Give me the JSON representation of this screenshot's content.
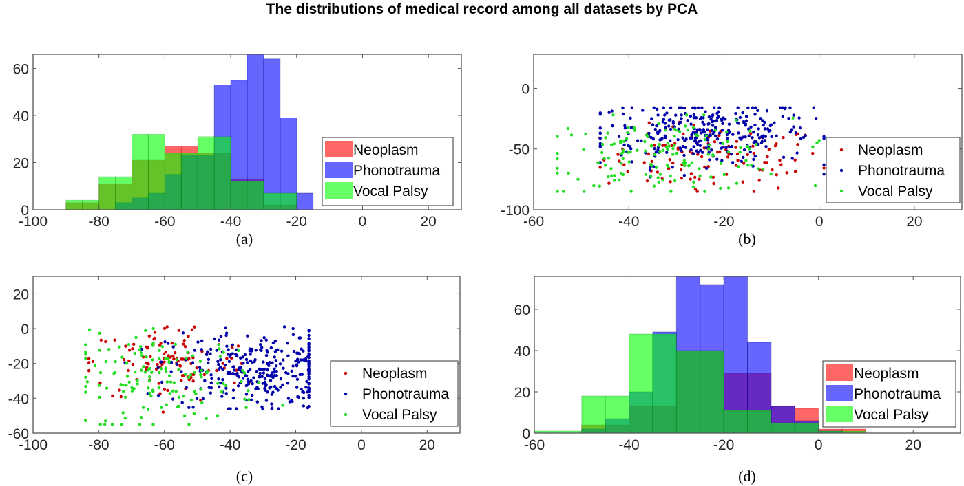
{
  "title": "The distributions of medical record among all datasets by PCA",
  "legend_labels": [
    "Neoplasm",
    "Phonotrauma",
    "Vocal Palsy"
  ],
  "colors": {
    "Neoplasm": "#ff0000",
    "Phonotrauma": "#0000ff",
    "Vocal Palsy": "#00ff00",
    "scatter_Neoplasm": "#cc0000",
    "scatter_Phonotrauma": "#0000aa",
    "scatter_Vocal Palsy": "#22dd22"
  },
  "chart_data": [
    {
      "panel": "a",
      "caption": "(a)",
      "type": "bar",
      "subtype": "overlaid-histogram",
      "bin_width": 5,
      "xlim": [
        -100,
        30
      ],
      "ylim": [
        0,
        66
      ],
      "xticks": [
        -100,
        -80,
        -60,
        -40,
        -20,
        0,
        20
      ],
      "yticks": [
        0,
        20,
        40,
        60
      ],
      "legend": "right",
      "series": [
        {
          "name": "Neoplasm",
          "bin_starts": [
            -90,
            -85,
            -80,
            -75,
            -70,
            -65,
            -60,
            -55,
            -50,
            -45,
            -40,
            -35,
            -30,
            -25
          ],
          "values": [
            3,
            3,
            11,
            11,
            21,
            21,
            27,
            27,
            24,
            24,
            13,
            13,
            2,
            2
          ]
        },
        {
          "name": "Phonotrauma",
          "bin_starts": [
            -75,
            -70,
            -65,
            -60,
            -55,
            -50,
            -45,
            -40,
            -35,
            -30,
            -25,
            -20
          ],
          "values": [
            3,
            5,
            7,
            15,
            23,
            23,
            53,
            55,
            66,
            64,
            39,
            7
          ]
        },
        {
          "name": "Vocal Palsy",
          "bin_starts": [
            -90,
            -85,
            -80,
            -75,
            -70,
            -65,
            -60,
            -55,
            -50,
            -45,
            -40,
            -35,
            -30,
            -25
          ],
          "values": [
            4,
            4,
            14,
            14,
            32,
            32,
            24,
            24,
            31,
            31,
            12,
            12,
            7,
            7
          ]
        }
      ]
    },
    {
      "panel": "b",
      "caption": "(b)",
      "type": "scatter",
      "xlim": [
        -60,
        30
      ],
      "ylim": [
        -100,
        28
      ],
      "xticks": [
        -60,
        -40,
        -20,
        0,
        20
      ],
      "yticks": [
        -100,
        -50,
        0
      ],
      "legend": "right",
      "series": [
        {
          "name": "Neoplasm",
          "cluster": {
            "x_range": [
              -48,
              1
            ],
            "y_range": [
              -85,
              -28
            ],
            "center": [
              -22,
              -58
            ],
            "count": 110
          }
        },
        {
          "name": "Phonotrauma",
          "cluster": {
            "x_range": [
              -46,
              1
            ],
            "y_range": [
              -73,
              -16
            ],
            "center": [
              -24,
              -36
            ],
            "count": 320
          }
        },
        {
          "name": "Vocal Palsy",
          "cluster": {
            "x_range": [
              -55,
              0
            ],
            "y_range": [
              -85,
              -22
            ],
            "center": [
              -32,
              -55
            ],
            "count": 150
          }
        }
      ]
    },
    {
      "panel": "c",
      "caption": "(c)",
      "type": "scatter",
      "xlim": [
        -100,
        30
      ],
      "ylim": [
        -60,
        30
      ],
      "xticks": [
        -100,
        -80,
        -60,
        -40,
        -20,
        0,
        20
      ],
      "yticks": [
        -60,
        -40,
        -20,
        0,
        20
      ],
      "legend": "right",
      "series": [
        {
          "name": "Neoplasm",
          "cluster": {
            "x_range": [
              -83,
              -30
            ],
            "y_range": [
              -48,
              1
            ],
            "center": [
              -58,
              -20
            ],
            "count": 110
          }
        },
        {
          "name": "Phonotrauma",
          "cluster": {
            "x_range": [
              -72,
              -16
            ],
            "y_range": [
              -46,
              1
            ],
            "center": [
              -32,
              -24
            ],
            "count": 320
          }
        },
        {
          "name": "Vocal Palsy",
          "cluster": {
            "x_range": [
              -84,
              -24
            ],
            "y_range": [
              -55,
              0
            ],
            "center": [
              -60,
              -30
            ],
            "count": 150
          }
        }
      ]
    },
    {
      "panel": "d",
      "caption": "(d)",
      "type": "bar",
      "subtype": "overlaid-histogram",
      "bin_width": 5,
      "xlim": [
        -60,
        30
      ],
      "ylim": [
        0,
        76
      ],
      "xticks": [
        -60,
        -40,
        -20,
        0,
        20
      ],
      "yticks": [
        0,
        20,
        40,
        60
      ],
      "legend": "right",
      "series": [
        {
          "name": "Neoplasm",
          "bin_starts": [
            -50,
            -45,
            -40,
            -35,
            -30,
            -25,
            -20,
            -15,
            -10,
            -5,
            0,
            5
          ],
          "values": [
            4,
            4,
            13,
            13,
            40,
            40,
            29,
            29,
            13,
            12,
            2,
            2
          ]
        },
        {
          "name": "Phonotrauma",
          "bin_starts": [
            -50,
            -45,
            -40,
            -35,
            -30,
            -25,
            -20,
            -15,
            -10,
            -5,
            0
          ],
          "values": [
            2,
            7,
            20,
            49,
            76,
            72,
            76,
            44,
            13,
            6,
            1
          ]
        },
        {
          "name": "Vocal Palsy",
          "bin_starts": [
            -60,
            -55,
            -50,
            -45,
            -40,
            -35,
            -30,
            -25,
            -20,
            -15,
            -10,
            -5,
            0,
            5
          ],
          "values": [
            1,
            1,
            18,
            18,
            48,
            48,
            40,
            40,
            11,
            11,
            5,
            5,
            1,
            1
          ]
        }
      ]
    }
  ]
}
